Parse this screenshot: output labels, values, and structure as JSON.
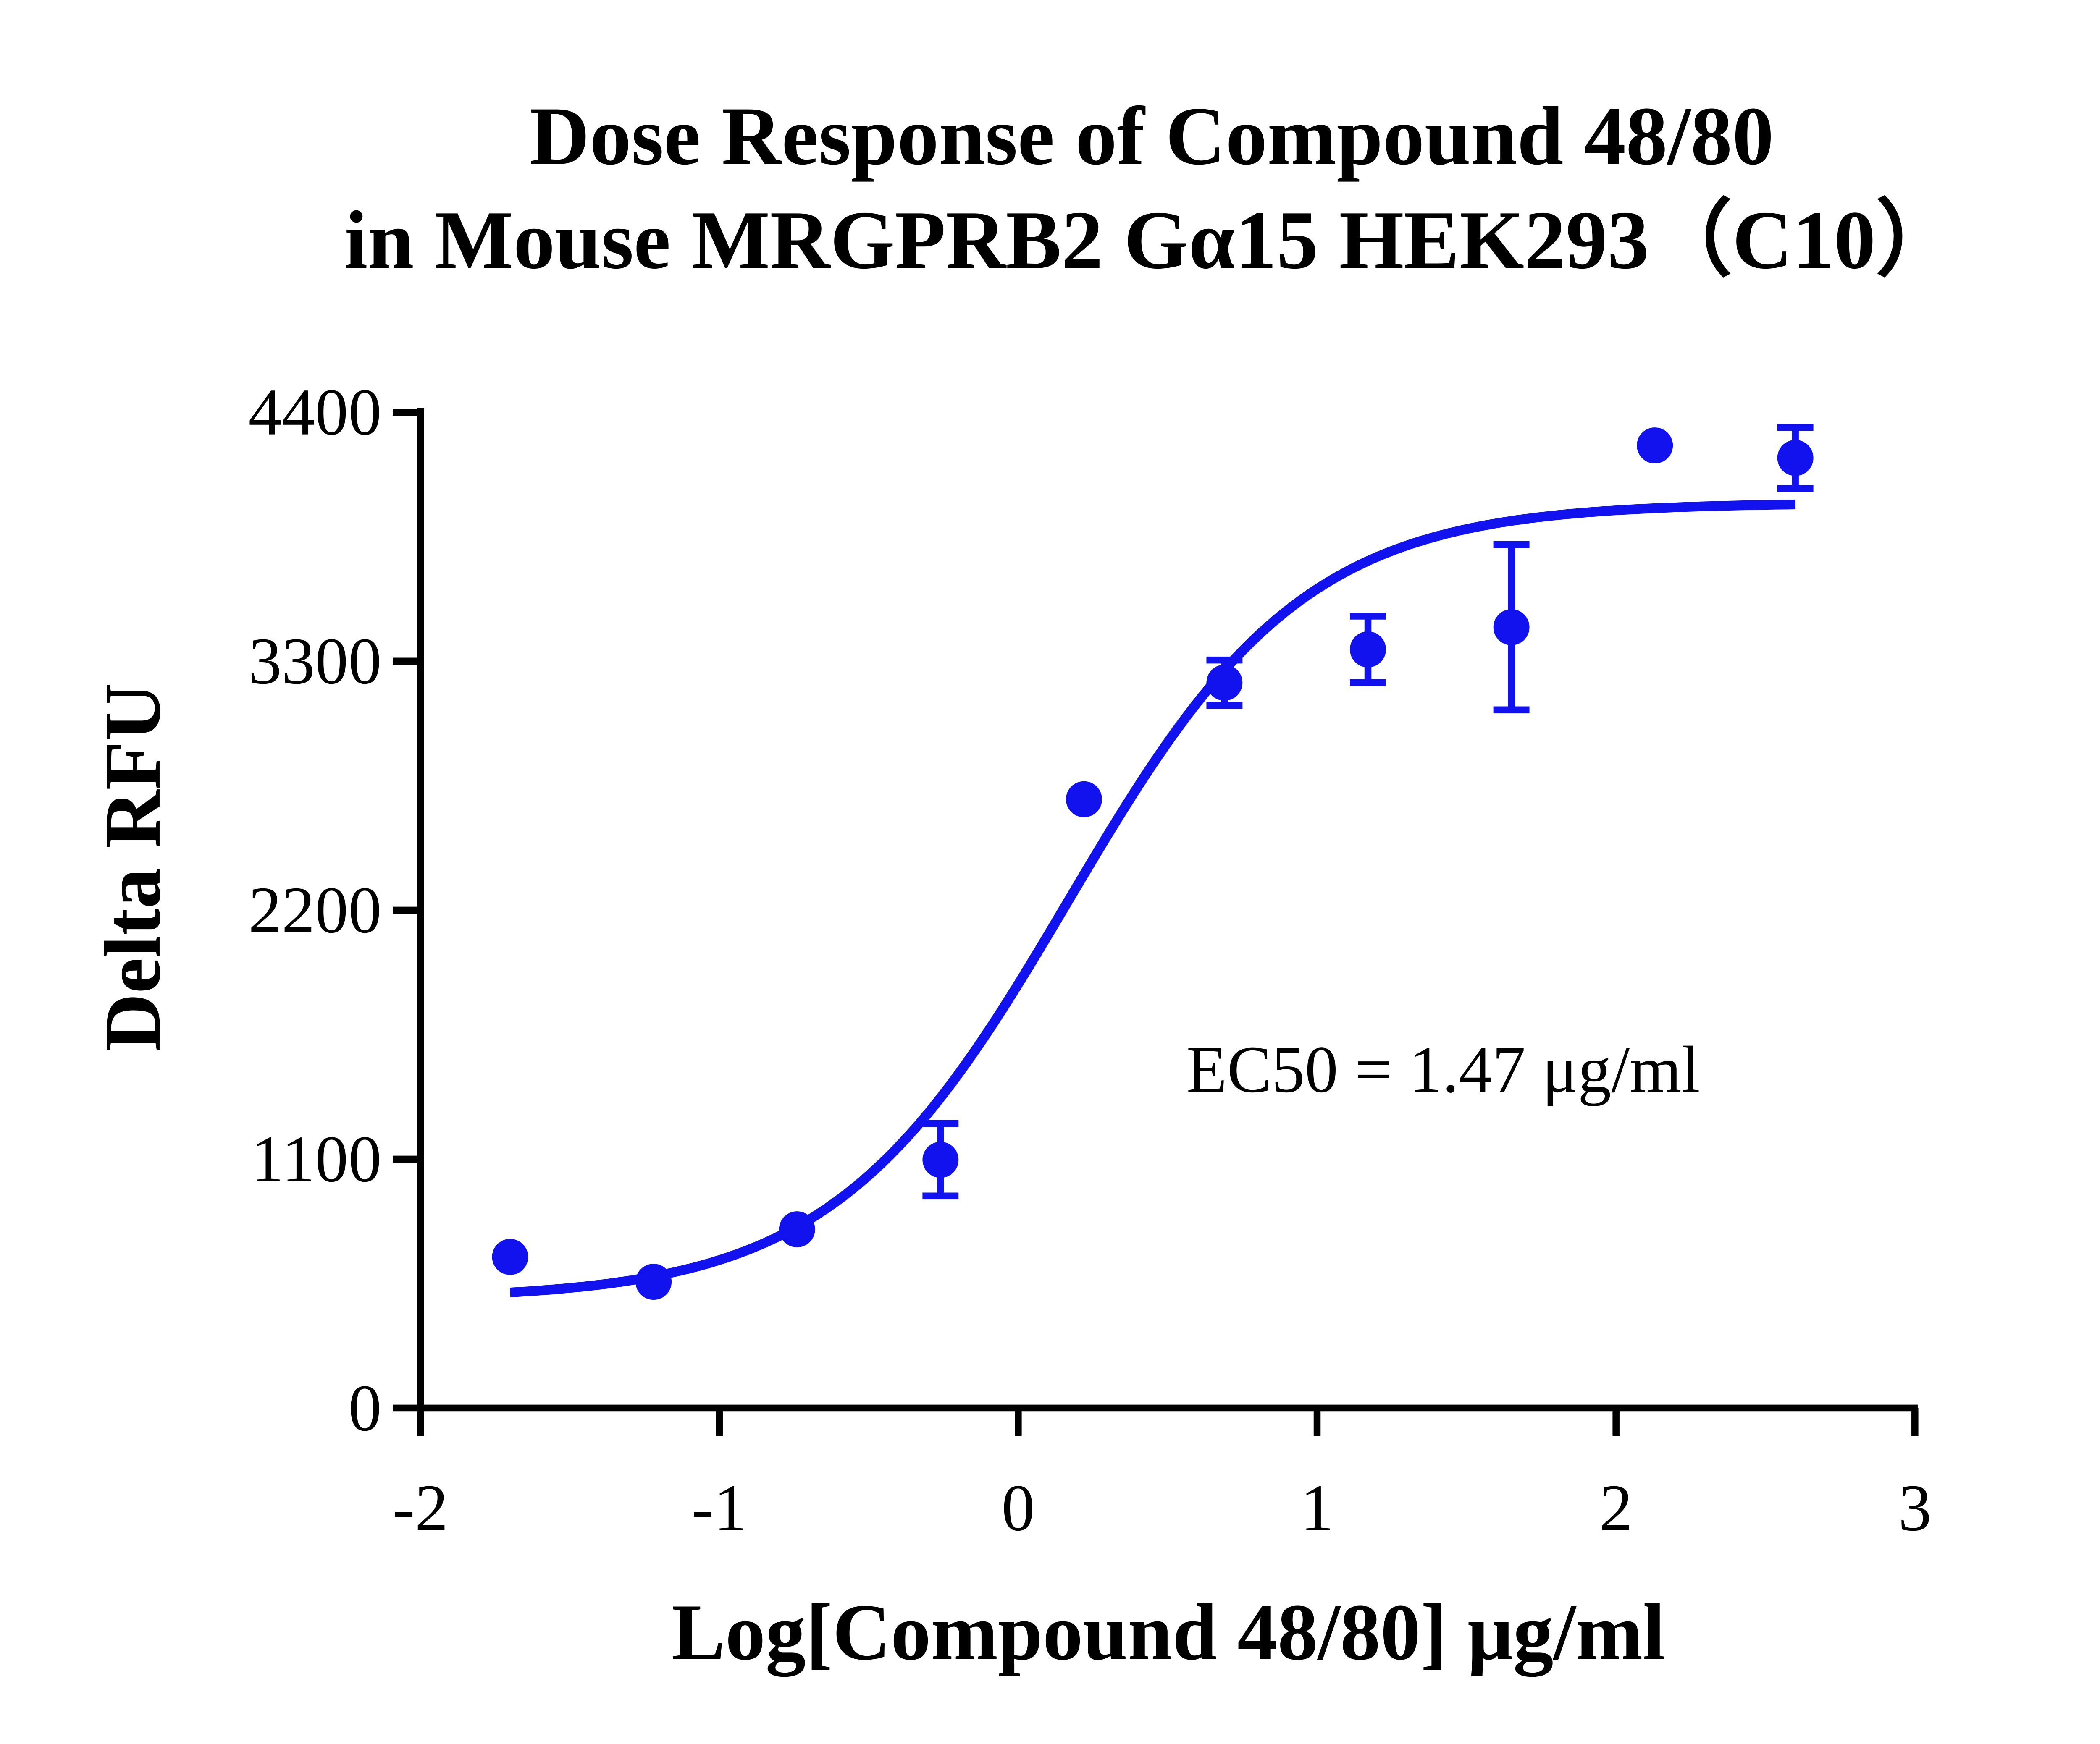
{
  "chart_data": {
    "type": "scatter",
    "title": [
      "Dose Response of Compound 48/80",
      "in Mouse MRGPRB2 Gα15 HEK293（C10）"
    ],
    "x_label": "Log[Compound 48/80] μg/ml",
    "y_label": "Delta RFU",
    "annotation": "EC50 = 1.47 μg/ml",
    "color": "#1212ee",
    "x": [
      -1.7,
      -1.22,
      -0.74,
      -0.26,
      0.22,
      0.69,
      1.17,
      1.65,
      2.13,
      2.6
    ],
    "values": [
      668,
      558,
      790,
      1097,
      2690,
      3205,
      3352,
      3450,
      4253,
      4198
    ],
    "errors": [
      null,
      null,
      null,
      160,
      null,
      100,
      147,
      365,
      null,
      135
    ],
    "fit": {
      "bottom": 480,
      "top": 4000,
      "log_ec50": 0.167,
      "hill": 1.1,
      "xlim": [
        -1.7,
        2.6
      ]
    },
    "xlim": [
      -2,
      3
    ],
    "xticks": [
      -2,
      -1,
      0,
      1,
      2,
      3
    ],
    "ylim": [
      0,
      4400
    ],
    "yticks": [
      0,
      1100,
      2200,
      3300,
      4400
    ]
  }
}
